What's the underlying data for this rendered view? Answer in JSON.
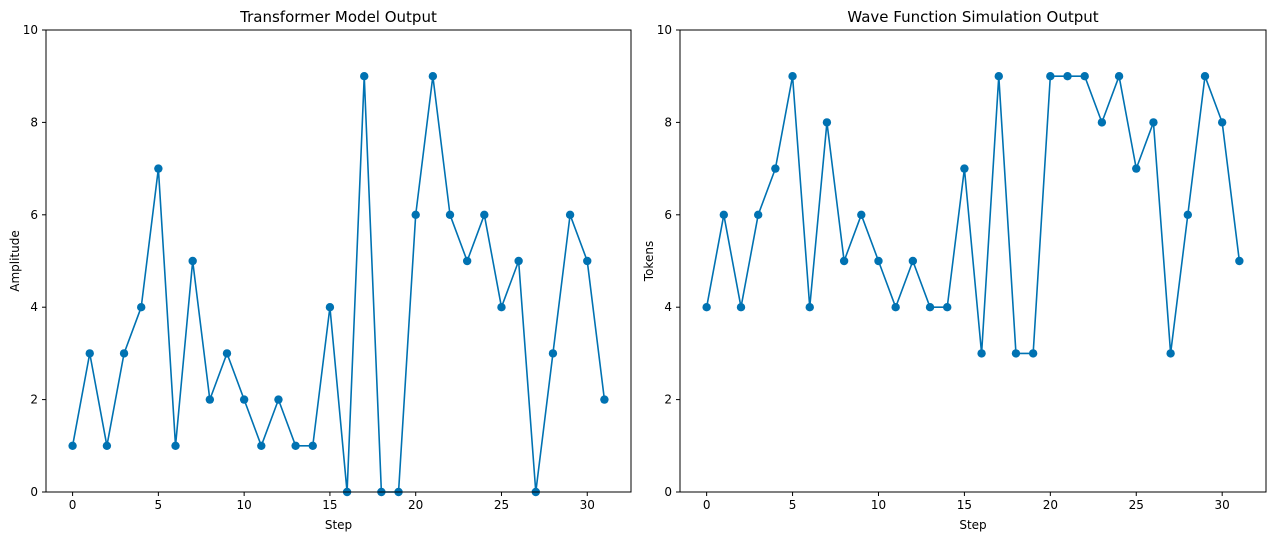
{
  "chart_data": [
    {
      "type": "line",
      "title": "Transformer Model Output",
      "xlabel": "Step",
      "ylabel": "Amplitude",
      "xlim": [
        -1.55,
        32.55
      ],
      "ylim": [
        0,
        10
      ],
      "xticks": [
        0,
        5,
        10,
        15,
        20,
        25,
        30
      ],
      "yticks": [
        0,
        2,
        4,
        6,
        8,
        10
      ],
      "x": [
        0,
        1,
        2,
        3,
        4,
        5,
        6,
        7,
        8,
        9,
        10,
        11,
        12,
        13,
        14,
        15,
        16,
        17,
        18,
        19,
        20,
        21,
        22,
        23,
        24,
        25,
        26,
        27,
        28,
        29,
        30,
        31
      ],
      "series": [
        {
          "name": "Transformer Model Output",
          "values": [
            1,
            3,
            1,
            3,
            4,
            7,
            1,
            5,
            2,
            3,
            2,
            1,
            2,
            1,
            1,
            4,
            0,
            9,
            0,
            0,
            6,
            9,
            6,
            5,
            6,
            4,
            5,
            0,
            3,
            6,
            5,
            2
          ]
        }
      ],
      "marker": "o",
      "grid": false
    },
    {
      "type": "line",
      "title": "Wave Function Simulation Output",
      "xlabel": "Step",
      "ylabel": "Tokens",
      "xlim": [
        -1.55,
        32.55
      ],
      "ylim": [
        0,
        10
      ],
      "xticks": [
        0,
        5,
        10,
        15,
        20,
        25,
        30
      ],
      "yticks": [
        0,
        2,
        4,
        6,
        8,
        10
      ],
      "x": [
        0,
        1,
        2,
        3,
        4,
        5,
        6,
        7,
        8,
        9,
        10,
        11,
        12,
        13,
        14,
        15,
        16,
        17,
        18,
        19,
        20,
        21,
        22,
        23,
        24,
        25,
        26,
        27,
        28,
        29,
        30,
        31
      ],
      "series": [
        {
          "name": "Wave Function Simulation Output",
          "values": [
            4,
            6,
            4,
            6,
            7,
            9,
            4,
            8,
            5,
            6,
            5,
            4,
            5,
            4,
            4,
            7,
            3,
            9,
            3,
            3,
            9,
            9,
            9,
            8,
            9,
            7,
            8,
            3,
            6,
            9,
            8,
            5
          ]
        }
      ],
      "marker": "o",
      "grid": false
    }
  ],
  "colors": {
    "series": "#0072b2"
  }
}
